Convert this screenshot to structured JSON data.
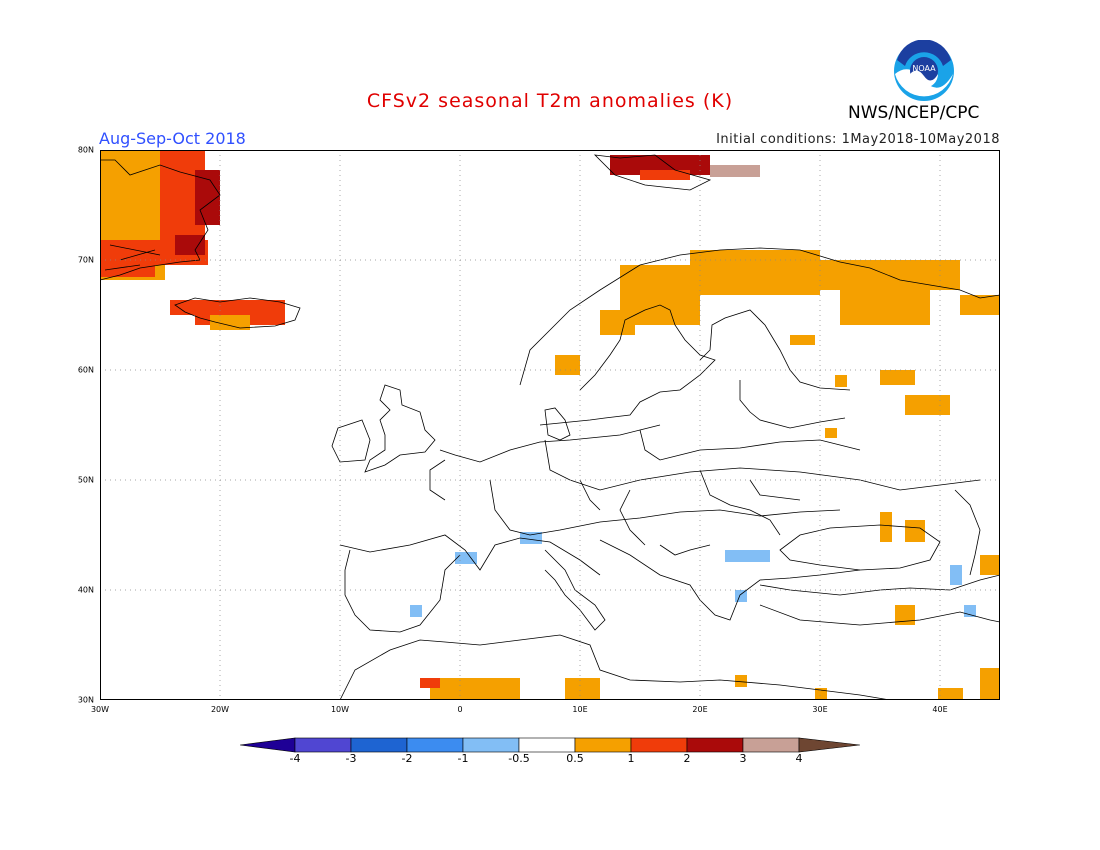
{
  "title": "CFSv2 seasonal T2m anomalies (K)",
  "period": "Aug-Sep-Oct 2018",
  "initial_conditions": "Initial conditions: 1May2018-10May2018",
  "agency": "NWS/NCEP/CPC",
  "logo_text": "NOAA",
  "map": {
    "lon_range": [
      -30,
      45
    ],
    "lat_range": [
      30,
      80
    ],
    "lon_ticks": [
      "30W",
      "20W",
      "10W",
      "0",
      "10E",
      "20E",
      "30E",
      "40E"
    ],
    "lat_ticks": [
      "30N",
      "40N",
      "50N",
      "60N",
      "70N",
      "80N"
    ],
    "grid": true
  },
  "colorbar": {
    "labels": [
      "-4",
      "-3",
      "-2",
      "-1",
      "-0.5",
      "0.5",
      "1",
      "2",
      "3",
      "4"
    ],
    "colors": [
      "#1e0096",
      "#5046d2",
      "#1e64d2",
      "#3c8cf0",
      "#82bef5",
      "#ffffff",
      "#f5a000",
      "#f03c0a",
      "#aa0a0a",
      "#c8a096",
      "#6e4632"
    ]
  }
}
